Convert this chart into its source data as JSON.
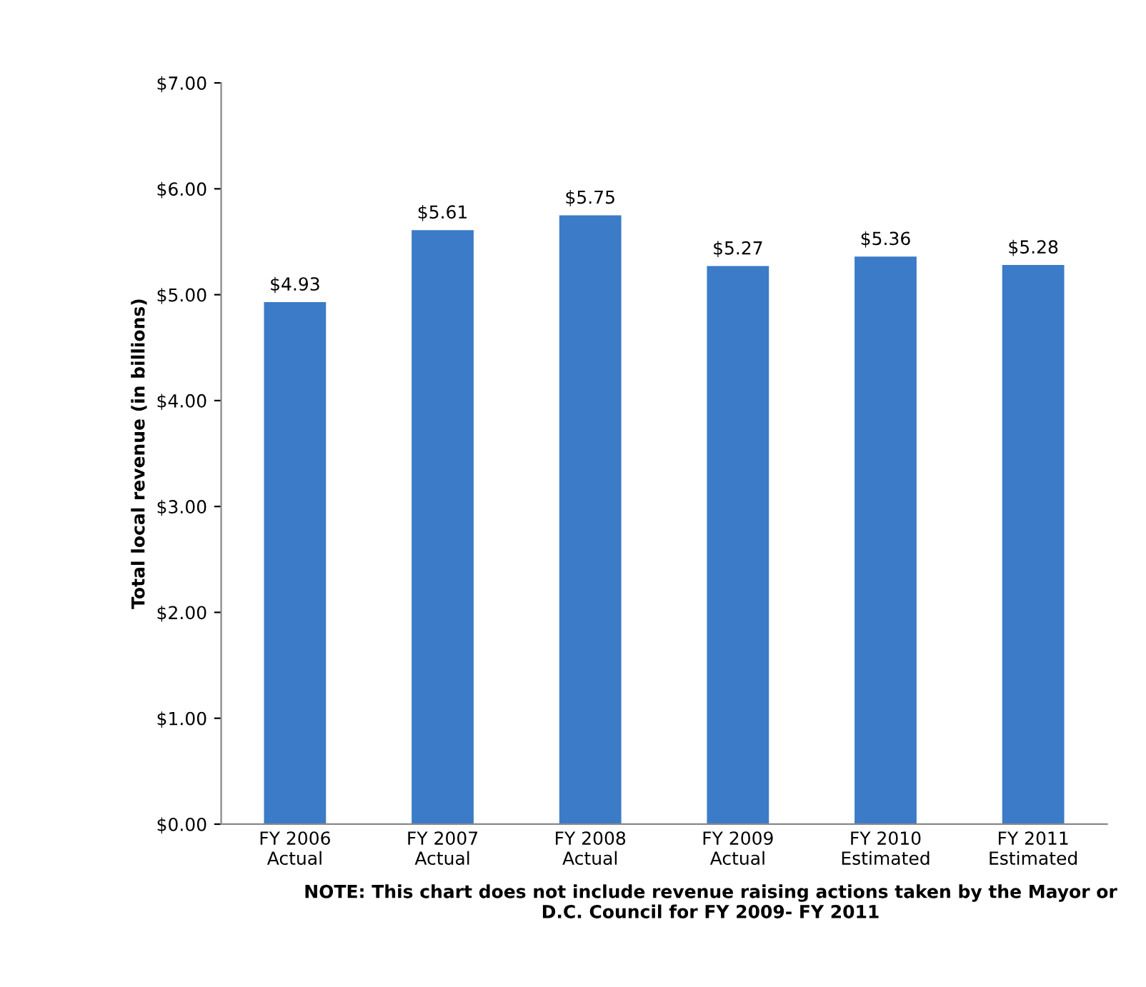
{
  "chart_data": {
    "type": "bar",
    "ylabel": "Total local revenue (in billions)",
    "categories": [
      "FY 2006\nActual",
      "FY 2007\nActual",
      "FY 2008\nActual",
      "FY 2009\nActual",
      "FY 2010\nEstimated",
      "FY 2011\nEstimated"
    ],
    "values": [
      4.93,
      5.61,
      5.75,
      5.27,
      5.36,
      5.28
    ],
    "value_labels": [
      "$4.93",
      "$5.61",
      "$5.75",
      "$5.27",
      "$5.36",
      "$5.28"
    ],
    "color": "#3b7bc8",
    "ylim": [
      0,
      7
    ],
    "yticks": [
      {
        "value": 0,
        "label": "$0.00"
      },
      {
        "value": 1,
        "label": "$1.00"
      },
      {
        "value": 2,
        "label": "$2.00"
      },
      {
        "value": 3,
        "label": "$3.00"
      },
      {
        "value": 4,
        "label": "$4.00"
      },
      {
        "value": 5,
        "label": "$5.00"
      },
      {
        "value": 6,
        "label": "$6.00"
      },
      {
        "value": 7,
        "label": "$7.00"
      }
    ],
    "annotations": [
      "NOTE: This chart does not include revenue raising actions taken by the Mayor or\nD.C. Council for FY 2009- FY 2011"
    ]
  }
}
